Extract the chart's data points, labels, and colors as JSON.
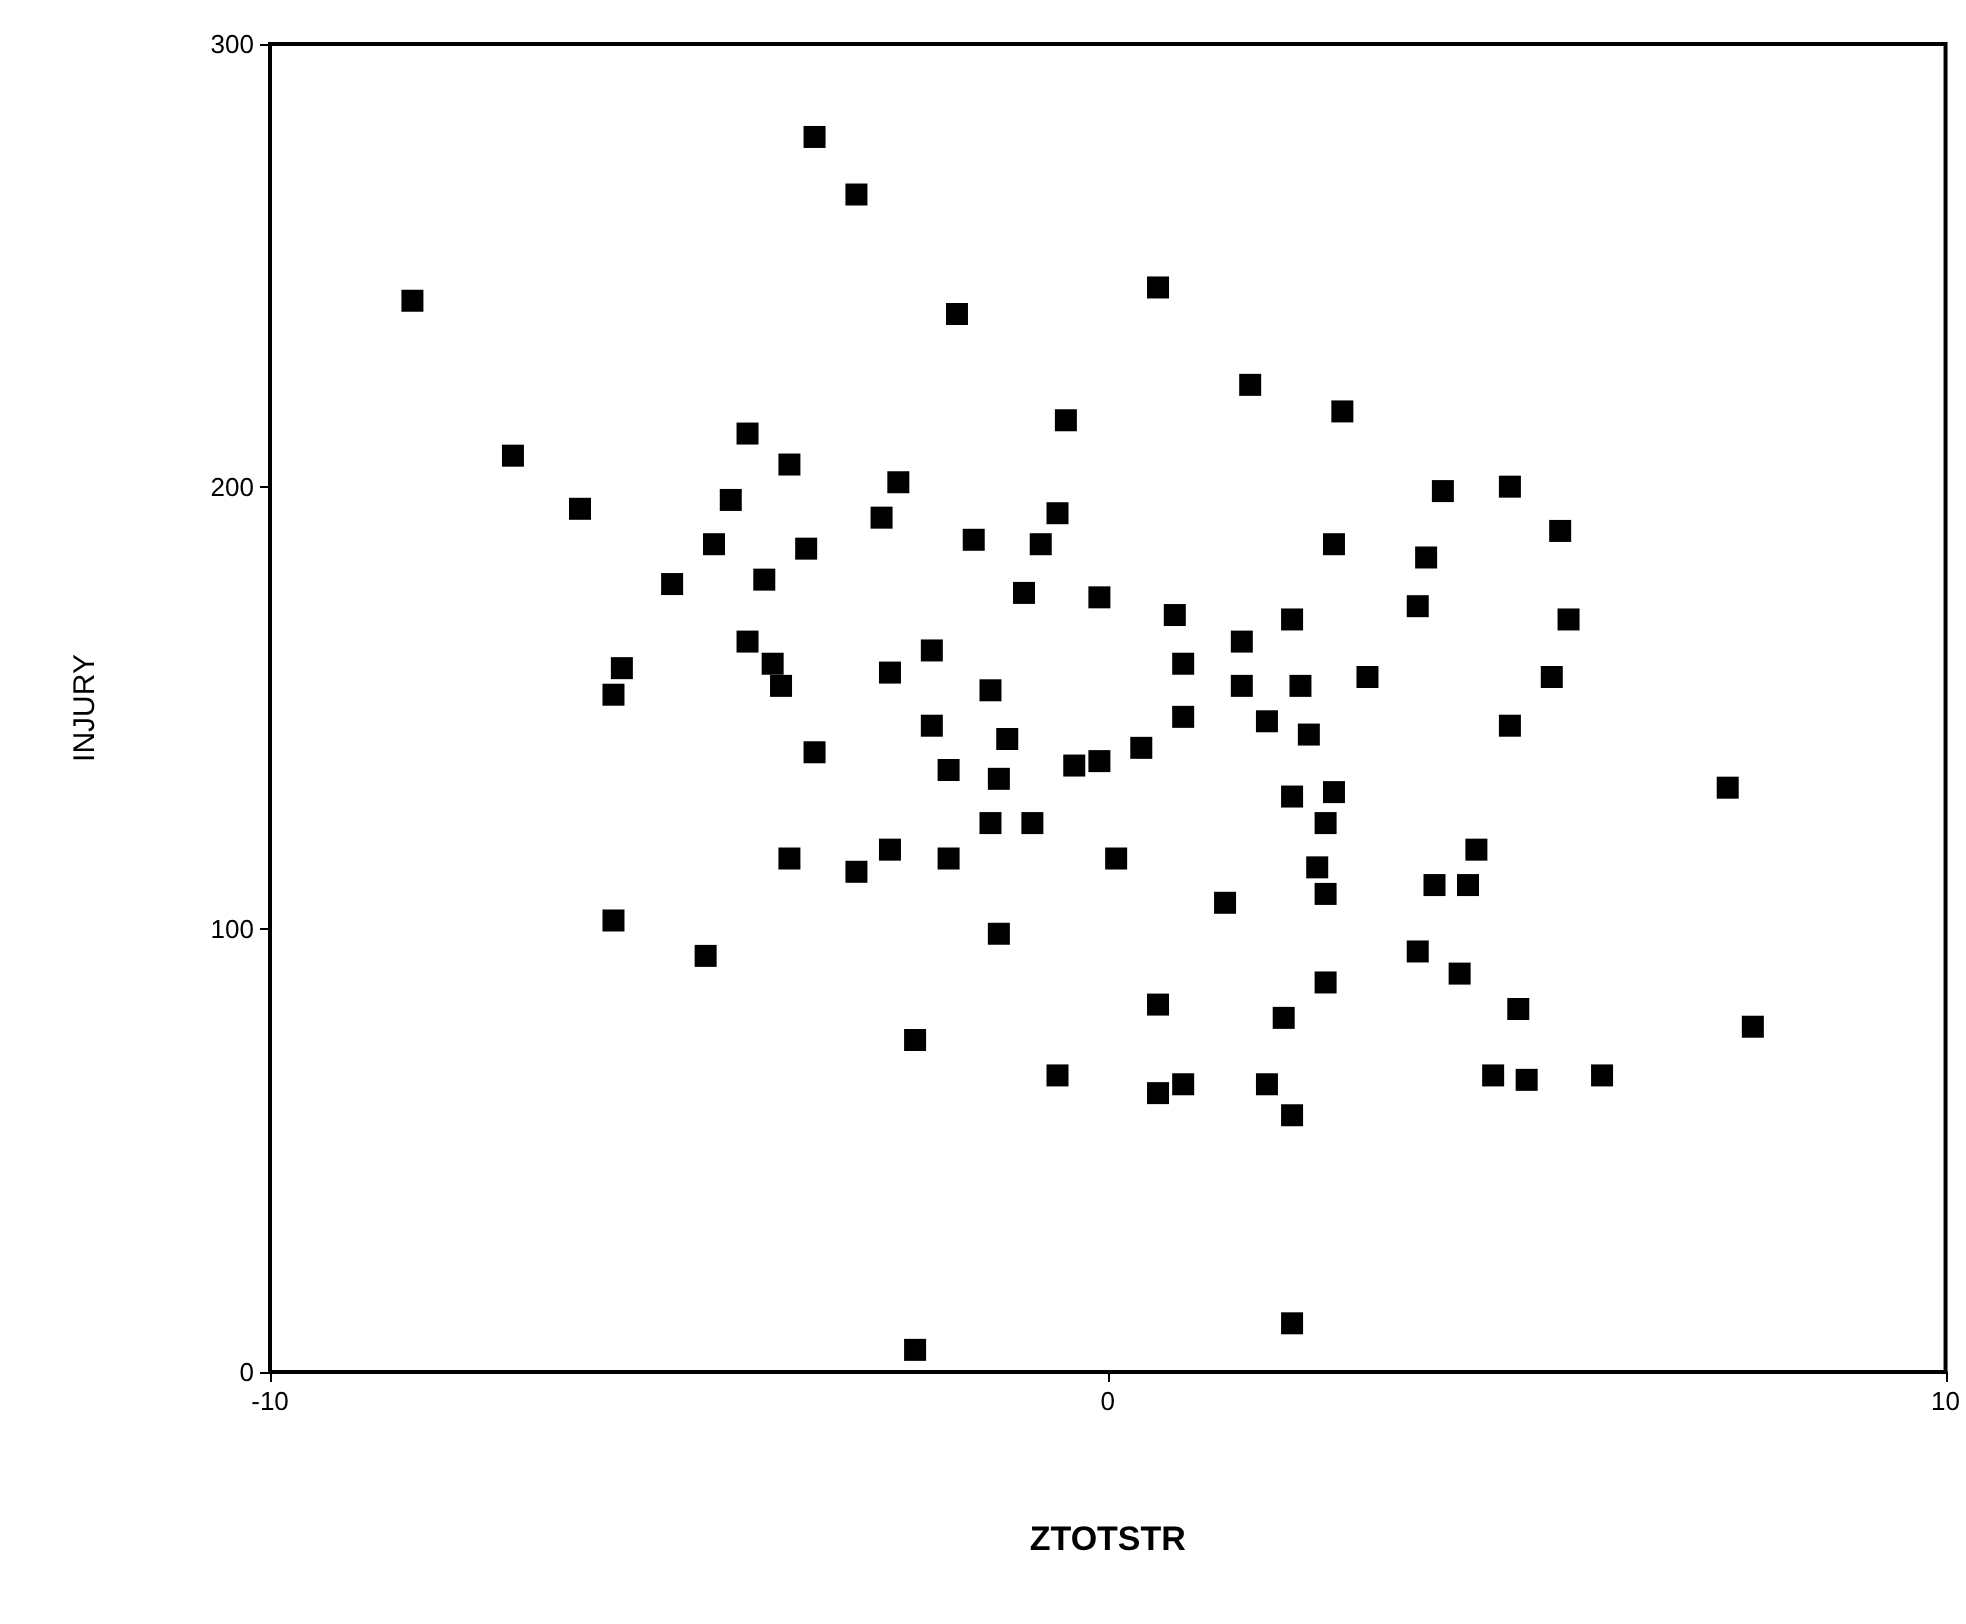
{
  "chart_data": {
    "type": "scatter",
    "xlabel": "ZTOTSTR",
    "ylabel": "INJURY",
    "xlim": [
      -10,
      10
    ],
    "xticks": [
      -10,
      0,
      10
    ],
    "ylim": [
      0,
      300
    ],
    "yticks": [
      0,
      100,
      200,
      300
    ],
    "grid": false,
    "marker": "square",
    "series": [
      {
        "color": "#000000",
        "x": [
          -8.3,
          -7.1,
          -6.3,
          -3.5,
          -3.0,
          -1.8,
          -4.3,
          -3.8,
          -4.5,
          -2.5,
          -2.7,
          -4.7,
          -3.6,
          -5.2,
          -4.1,
          -1.6,
          -0.8,
          -0.6,
          -0.5,
          -1.0,
          -0.1,
          -4.3,
          -4.0,
          -3.9,
          -5.8,
          -5.9,
          -2.6,
          -2.1,
          -1.4,
          -2.1,
          -1.2,
          -3.5,
          -1.9,
          -1.3,
          -0.4,
          -0.1,
          0.6,
          1.7,
          2.8,
          4.0,
          4.8,
          5.4,
          2.7,
          3.8,
          3.7,
          5.5,
          0.8,
          1.6,
          2.2,
          0.9,
          3.1,
          5.3,
          1.6,
          2.3,
          0.9,
          1.9,
          2.4,
          4.8,
          0.4,
          -1.4,
          -0.9,
          0.1,
          2.2,
          2.7,
          2.6,
          2.5,
          2.6,
          1.4,
          -1.3,
          4.4,
          3.9,
          4.3,
          3.7,
          4.2,
          4.9,
          2.6,
          0.6,
          2.1,
          -0.6,
          0.6,
          0.9,
          1.9,
          2.2,
          4.6,
          5.0,
          5.9,
          7.7,
          7.4,
          2.2,
          -5.9,
          -4.8,
          -2.3,
          -3.8,
          -3.0,
          -2.6,
          -1.9,
          -2.3
        ],
        "values": [
          242,
          207,
          195,
          279,
          266,
          239,
          212,
          205,
          197,
          201,
          193,
          187,
          186,
          178,
          179,
          188,
          187,
          194,
          215,
          176,
          175,
          165,
          160,
          155,
          159,
          153,
          158,
          163,
          154,
          146,
          143,
          140,
          136,
          134,
          137,
          138,
          245,
          223,
          217,
          199,
          200,
          190,
          187,
          184,
          173,
          170,
          171,
          165,
          170,
          160,
          157,
          157,
          155,
          155,
          148,
          147,
          144,
          146,
          141,
          124,
          124,
          116,
          130,
          131,
          124,
          114,
          108,
          106,
          99,
          118,
          110,
          110,
          95,
          90,
          82,
          88,
          83,
          80,
          67,
          63,
          65,
          65,
          58,
          67,
          66,
          67,
          78,
          132,
          11,
          102,
          94,
          75,
          116,
          113,
          118,
          116,
          5
        ]
      }
    ]
  }
}
